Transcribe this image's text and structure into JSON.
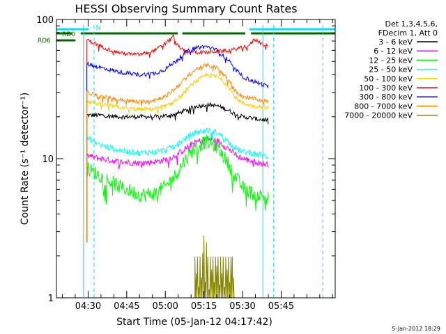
{
  "chart_data": {
    "type": "line",
    "title": "HESSI Observing Summary Count Rates",
    "xlabel": "Start Time (05-Jan-12 04:17:42)",
    "ylabel": "Count Rate (s⁻¹ detector⁻¹)",
    "y_scale": "log",
    "ylim": [
      1,
      100
    ],
    "xlim_minutes_utc": [
      257.7,
      366
    ],
    "x_ticks": [
      {
        "label": "04:30",
        "t": 270
      },
      {
        "label": "04:45",
        "t": 285
      },
      {
        "label": "05:00",
        "t": 300
      },
      {
        "label": "05:15",
        "t": 315
      },
      {
        "label": "05:30",
        "t": 330
      },
      {
        "label": "05:45",
        "t": 345
      }
    ],
    "y_ticks": [
      {
        "label": "1",
        "v": 1
      },
      {
        "label": "10",
        "v": 10
      },
      {
        "label": "100",
        "v": 100
      }
    ],
    "legend": {
      "placement": "right",
      "header": [
        "Det 1,3,4,5,6,",
        "FDecim 1, Att 0"
      ],
      "entries": [
        {
          "label": "3 - 6 keV",
          "color": "#000000"
        },
        {
          "label": "6 - 12 keV",
          "color": "#ff00ff"
        },
        {
          "label": "12 - 25 keV",
          "color": "#00ff00"
        },
        {
          "label": "25 - 50 keV",
          "color": "#00ffff"
        },
        {
          "label": "50 - 100 keV",
          "color": "#ffcc00"
        },
        {
          "label": "100 - 300 keV",
          "color": "#ff0000"
        },
        {
          "label": "300 - 800 keV",
          "color": "#0000ff"
        },
        {
          "label": "800 - 7000 keV",
          "color": "#ff8800"
        },
        {
          "label": "7000 - 20000 keV",
          "color": "#888800"
        }
      ]
    },
    "series": [
      {
        "name": "3 - 6 keV",
        "color": "#000000",
        "noise": 0.035,
        "points": [
          [
            269.5,
            20.5
          ],
          [
            275,
            20.5
          ],
          [
            282,
            20
          ],
          [
            290,
            20
          ],
          [
            297,
            20
          ],
          [
            302,
            20.5
          ],
          [
            306,
            21.5
          ],
          [
            311,
            23.5
          ],
          [
            316,
            24.5
          ],
          [
            320,
            24
          ],
          [
            324,
            22.5
          ],
          [
            327,
            21
          ],
          [
            330,
            20
          ],
          [
            334,
            19.5
          ],
          [
            338,
            19
          ],
          [
            340,
            19
          ]
        ]
      },
      {
        "name": "6 - 12 keV",
        "color": "#ff00ff",
        "noise": 0.05,
        "points": [
          [
            269.5,
            10.5
          ],
          [
            275,
            10
          ],
          [
            282,
            9.5
          ],
          [
            290,
            9.3
          ],
          [
            296,
            9.5
          ],
          [
            300,
            9.8
          ],
          [
            303,
            10.3
          ],
          [
            307,
            11.5
          ],
          [
            311,
            13
          ],
          [
            316,
            14
          ],
          [
            320,
            13.5
          ],
          [
            324,
            12
          ],
          [
            327,
            10.8
          ],
          [
            330,
            10
          ],
          [
            334,
            9.6
          ],
          [
            338,
            9.2
          ],
          [
            340,
            9.1
          ]
        ]
      },
      {
        "name": "12 - 25 keV",
        "color": "#00ff00",
        "noise": 0.12,
        "points": [
          [
            269.5,
            8.5
          ],
          [
            275,
            7.5
          ],
          [
            282,
            6.3
          ],
          [
            290,
            5.5
          ],
          [
            296,
            5.6
          ],
          [
            300,
            6.3
          ],
          [
            304,
            7.6
          ],
          [
            308,
            10
          ],
          [
            312,
            12.2
          ],
          [
            316,
            13.2
          ],
          [
            320,
            12.2
          ],
          [
            324,
            9.5
          ],
          [
            327,
            7.5
          ],
          [
            330,
            6.2
          ],
          [
            334,
            5.6
          ],
          [
            338,
            5.4
          ],
          [
            340,
            5.2
          ]
        ]
      },
      {
        "name": "25 - 50 keV",
        "color": "#00ffff",
        "noise": 0.05,
        "points": [
          [
            269.5,
            14
          ],
          [
            275,
            12.5
          ],
          [
            282,
            11.5
          ],
          [
            290,
            11
          ],
          [
            296,
            11.2
          ],
          [
            300,
            11.5
          ],
          [
            304,
            12.5
          ],
          [
            308,
            14
          ],
          [
            312,
            15.5
          ],
          [
            316,
            16
          ],
          [
            320,
            15.5
          ],
          [
            324,
            13.5
          ],
          [
            327,
            12
          ],
          [
            330,
            11.2
          ],
          [
            334,
            11
          ],
          [
            338,
            10.5
          ],
          [
            340,
            10.3
          ]
        ]
      },
      {
        "name": "50 - 100 keV",
        "color": "#ffcc00",
        "noise": 0.035,
        "points": [
          [
            269.5,
            26
          ],
          [
            275,
            24.5
          ],
          [
            282,
            23.5
          ],
          [
            290,
            22.5
          ],
          [
            297,
            23
          ],
          [
            302,
            24.5
          ],
          [
            306,
            28
          ],
          [
            311,
            35
          ],
          [
            316,
            40
          ],
          [
            320,
            39
          ],
          [
            324,
            34
          ],
          [
            327,
            28
          ],
          [
            330,
            25
          ],
          [
            334,
            24
          ],
          [
            338,
            23.5
          ],
          [
            340,
            23
          ]
        ]
      },
      {
        "name": "100 - 300 keV",
        "color": "#ff0000",
        "noise": 0.03,
        "points": [
          [
            269.5,
            72
          ],
          [
            272,
            68
          ],
          [
            276,
            63
          ],
          [
            280,
            59
          ],
          [
            285,
            56.5
          ],
          [
            290,
            56
          ],
          [
            295,
            59
          ],
          [
            299,
            65
          ],
          [
            302,
            72
          ],
          [
            303,
            78
          ],
          [
            304,
            67
          ],
          [
            307,
            60
          ],
          [
            311,
            58.5
          ],
          [
            316,
            58
          ],
          [
            320,
            59
          ],
          [
            325,
            60
          ],
          [
            330,
            63
          ],
          [
            333,
            66
          ],
          [
            334.5,
            72
          ],
          [
            336,
            70
          ],
          [
            338,
            66
          ],
          [
            340,
            64
          ]
        ]
      },
      {
        "name": "300 - 800 keV",
        "color": "#0000ff",
        "noise": 0.035,
        "points": [
          [
            269.5,
            48
          ],
          [
            275,
            45
          ],
          [
            282,
            42
          ],
          [
            290,
            40
          ],
          [
            296,
            41
          ],
          [
            300,
            44
          ],
          [
            304,
            50
          ],
          [
            308,
            58
          ],
          [
            312,
            63
          ],
          [
            316,
            64
          ],
          [
            320,
            60
          ],
          [
            324,
            52
          ],
          [
            327,
            44
          ],
          [
            330,
            39
          ],
          [
            334,
            36
          ],
          [
            338,
            34
          ],
          [
            340,
            33
          ]
        ]
      },
      {
        "name": "800 - 7000 keV",
        "color": "#ff8800",
        "noise": 0.035,
        "points": [
          [
            269.5,
            30
          ],
          [
            275,
            28
          ],
          [
            282,
            26.5
          ],
          [
            290,
            25.5
          ],
          [
            296,
            26.5
          ],
          [
            300,
            28
          ],
          [
            304,
            32
          ],
          [
            308,
            38
          ],
          [
            312,
            44
          ],
          [
            316,
            47
          ],
          [
            320,
            45
          ],
          [
            324,
            38
          ],
          [
            327,
            31
          ],
          [
            330,
            28
          ],
          [
            334,
            27
          ],
          [
            338,
            26
          ],
          [
            340,
            25.5
          ]
        ]
      },
      {
        "name": "7000 - 20000 keV",
        "color": "#888800",
        "noise": 0.0,
        "points": [
          [
            311.5,
            1.98
          ],
          [
            312,
            1.5
          ],
          [
            312.5,
            1.98
          ],
          [
            313,
            1.2
          ],
          [
            313.5,
            1.98
          ],
          [
            314,
            1.4
          ],
          [
            314.5,
            2.1
          ],
          [
            315,
            2.8
          ],
          [
            315.5,
            1.3
          ],
          [
            316,
            2.5
          ],
          [
            316.5,
            1.98
          ],
          [
            317,
            1.15
          ],
          [
            317.5,
            1.98
          ],
          [
            318,
            1.6
          ],
          [
            318.5,
            1.98
          ],
          [
            319,
            1.3
          ],
          [
            319.5,
            1.98
          ],
          [
            320,
            1.7
          ],
          [
            320.5,
            1.98
          ],
          [
            321,
            1.25
          ],
          [
            321.5,
            1.98
          ],
          [
            322,
            1.5
          ],
          [
            322.5,
            1.98
          ],
          [
            323,
            1.2
          ],
          [
            323.5,
            1.98
          ],
          [
            324,
            1.6
          ],
          [
            324.5,
            1.98
          ],
          [
            325,
            1.3
          ],
          [
            325.5,
            1.98
          ],
          [
            326,
            1.98
          ],
          [
            326.5,
            1.4
          ]
        ]
      }
    ],
    "flags": [
      {
        "label": "N",
        "color": "#00e0ff",
        "segments": [
          [
            257.7,
            270.3
          ],
          [
            332.7,
            366
          ]
        ]
      },
      {
        "label": "RD0",
        "color": "#006600",
        "segments": [
          [
            257.7,
            263.9
          ],
          [
            267.1,
            304.8
          ],
          [
            306.6,
            331.1
          ],
          [
            333.3,
            366
          ]
        ]
      },
      {
        "label": "RD6",
        "color": "#006600",
        "segments": [
          [
            257.7,
            265.1
          ]
        ]
      }
    ],
    "vertical_markers": [
      {
        "t": 268.2,
        "style": "solid",
        "color": "#00e0ff"
      },
      {
        "t": 272.3,
        "style": "dashed",
        "color": "#00e0ff"
      },
      {
        "t": 337.9,
        "style": "solid",
        "color": "#00e0ff"
      },
      {
        "t": 342.1,
        "style": "dashed",
        "color": "#00e0ff"
      },
      {
        "t": 361.2,
        "style": "dashed",
        "color": "#00e0ff"
      }
    ],
    "grid": false
  },
  "footer": {
    "timestamp": "5-Jan-2012 18:29"
  }
}
